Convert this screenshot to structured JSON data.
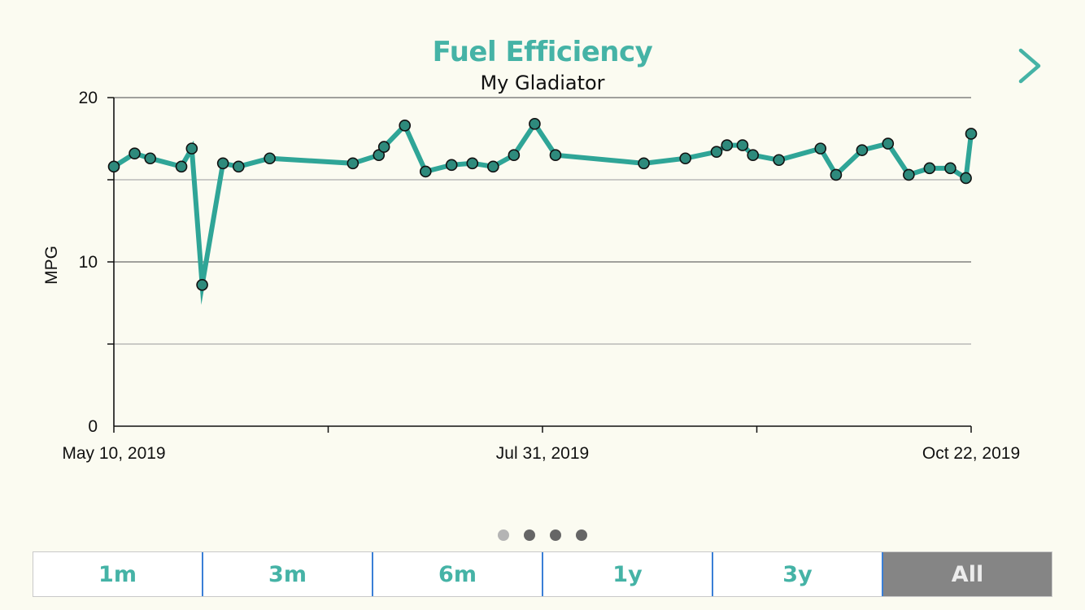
{
  "header": {
    "title": "Fuel Efficiency",
    "subtitle": "My Gladiator"
  },
  "chart_data": {
    "type": "line",
    "ylabel": "MPG",
    "ylim": [
      0,
      20
    ],
    "y_ticks": [
      "0",
      "10",
      "20"
    ],
    "x_range": [
      "2019-05-10",
      "2019-10-22"
    ],
    "x_tick_labels": [
      "May 10, 2019",
      "Jul 31, 2019",
      "Oct 22, 2019"
    ],
    "grid": true,
    "color": "#2fa597",
    "marker_color": "#2e8a7c",
    "points": [
      {
        "x": "2019-05-10",
        "y": 15.8
      },
      {
        "x": "2019-05-14",
        "y": 16.6
      },
      {
        "x": "2019-05-17",
        "y": 16.3
      },
      {
        "x": "2019-05-23",
        "y": 15.8
      },
      {
        "x": "2019-05-25",
        "y": 16.9
      },
      {
        "x": "2019-05-27",
        "y": 8.6
      },
      {
        "x": "2019-05-31",
        "y": 16.0
      },
      {
        "x": "2019-06-03",
        "y": 15.8
      },
      {
        "x": "2019-06-09",
        "y": 16.3
      },
      {
        "x": "2019-06-25",
        "y": 16.0
      },
      {
        "x": "2019-06-30",
        "y": 16.5
      },
      {
        "x": "2019-07-01",
        "y": 17.0
      },
      {
        "x": "2019-07-05",
        "y": 18.3
      },
      {
        "x": "2019-07-09",
        "y": 15.5
      },
      {
        "x": "2019-07-14",
        "y": 15.9
      },
      {
        "x": "2019-07-18",
        "y": 16.0
      },
      {
        "x": "2019-07-22",
        "y": 15.8
      },
      {
        "x": "2019-07-26",
        "y": 16.5
      },
      {
        "x": "2019-07-30",
        "y": 18.4
      },
      {
        "x": "2019-08-03",
        "y": 16.5
      },
      {
        "x": "2019-08-20",
        "y": 16.0
      },
      {
        "x": "2019-08-28",
        "y": 16.3
      },
      {
        "x": "2019-09-03",
        "y": 16.7
      },
      {
        "x": "2019-09-05",
        "y": 17.1
      },
      {
        "x": "2019-09-08",
        "y": 17.1
      },
      {
        "x": "2019-09-10",
        "y": 16.5
      },
      {
        "x": "2019-09-15",
        "y": 16.2
      },
      {
        "x": "2019-09-23",
        "y": 16.9
      },
      {
        "x": "2019-09-26",
        "y": 15.3
      },
      {
        "x": "2019-10-01",
        "y": 16.8
      },
      {
        "x": "2019-10-06",
        "y": 17.2
      },
      {
        "x": "2019-10-10",
        "y": 15.3
      },
      {
        "x": "2019-10-14",
        "y": 15.7
      },
      {
        "x": "2019-10-18",
        "y": 15.7
      },
      {
        "x": "2019-10-21",
        "y": 15.1
      },
      {
        "x": "2019-10-22",
        "y": 17.8
      }
    ]
  },
  "pager": {
    "pages": 4,
    "active_index": 0
  },
  "range_selector": {
    "options": [
      "1m",
      "3m",
      "6m",
      "1y",
      "3y",
      "All"
    ],
    "selected": "All"
  },
  "icons": {
    "next": "chevron-right-icon"
  }
}
